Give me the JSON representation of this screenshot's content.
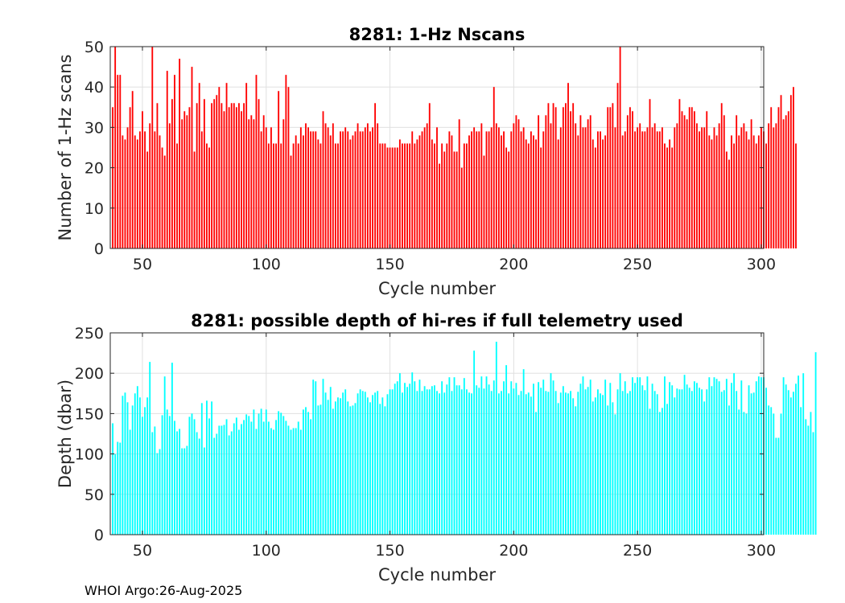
{
  "footer": "WHOI Argo:26-Aug-2025",
  "chart_data": [
    {
      "type": "bar",
      "title": "8281: 1-Hz Nscans",
      "xlabel": "Cycle number",
      "ylabel": "Number of 1-Hz scans",
      "xlim": [
        37,
        301
      ],
      "ylim": [
        0,
        50
      ],
      "xticks": [
        50,
        100,
        150,
        200,
        250,
        300
      ],
      "yticks": [
        0,
        10,
        20,
        30,
        40,
        50
      ],
      "grid": true,
      "color": "#ff0000",
      "x_start": 38,
      "values": [
        35,
        50,
        43,
        43,
        28,
        27,
        30,
        35,
        39,
        28,
        27,
        29,
        34,
        29,
        24,
        31,
        50,
        29,
        36,
        28,
        25,
        23,
        44,
        31,
        37,
        43,
        26,
        47,
        32,
        34,
        33,
        35,
        45,
        24,
        36,
        41,
        29,
        37,
        26,
        25,
        36,
        37,
        38,
        40,
        36,
        34,
        41,
        35,
        36,
        36,
        35,
        36,
        34,
        36,
        41,
        32,
        33,
        32,
        43,
        37,
        29,
        33,
        30,
        26,
        30,
        26,
        26,
        39,
        26,
        32,
        43,
        40,
        23,
        26,
        28,
        26,
        30,
        28,
        31,
        30,
        29,
        29,
        29,
        27,
        26,
        34,
        31,
        30,
        28,
        31,
        26,
        26,
        29,
        29,
        30,
        29,
        27,
        28,
        29,
        31,
        29,
        29,
        30,
        31,
        29,
        30,
        36,
        31,
        26,
        26,
        26,
        25,
        25,
        25,
        25,
        25,
        27,
        26,
        26,
        26,
        26,
        29,
        26,
        27,
        28,
        29,
        30,
        31,
        36,
        27,
        26,
        30,
        21,
        26,
        24,
        26,
        29,
        28,
        24,
        24,
        32,
        20,
        26,
        26,
        28,
        29,
        30,
        29,
        29,
        31,
        23,
        29,
        29,
        30,
        40,
        31,
        30,
        28,
        29,
        25,
        24,
        29,
        31,
        33,
        32,
        29,
        30,
        27,
        26,
        29,
        28,
        27,
        33,
        25,
        29,
        33,
        36,
        31,
        36,
        35,
        27,
        30,
        35,
        36,
        41,
        34,
        36,
        31,
        28,
        33,
        30,
        30,
        32,
        33,
        27,
        25,
        29,
        29,
        27,
        28,
        35,
        35,
        36,
        30,
        41,
        50,
        28,
        29,
        33,
        35,
        34,
        29,
        30,
        31,
        29,
        29,
        30,
        37,
        30,
        31,
        29,
        29,
        30,
        26,
        25,
        27,
        25,
        30,
        31,
        37,
        34,
        33,
        32,
        35,
        35,
        34,
        31,
        29,
        30,
        30,
        34,
        28,
        27,
        30,
        28,
        31,
        36,
        33,
        24,
        22,
        28,
        26,
        33,
        28,
        30,
        31,
        29,
        27,
        32,
        28,
        26,
        28,
        30,
        29,
        26,
        31,
        35,
        30,
        31,
        35,
        38,
        32,
        33,
        34,
        38,
        40,
        26
      ]
    },
    {
      "type": "bar",
      "title": "8281: possible depth of hi-res if full telemetry used",
      "xlabel": "Cycle number",
      "ylabel": "Depth (dbar)",
      "xlim": [
        37,
        301
      ],
      "ylim": [
        0,
        250
      ],
      "xticks": [
        50,
        100,
        150,
        200,
        250,
        300
      ],
      "yticks": [
        0,
        50,
        100,
        150,
        200,
        250
      ],
      "grid": true,
      "color": "#00ffff",
      "x_start": 38,
      "values": [
        138,
        100,
        115,
        114,
        172,
        176,
        164,
        130,
        160,
        175,
        184,
        170,
        146,
        158,
        170,
        214,
        127,
        134,
        101,
        106,
        148,
        196,
        155,
        147,
        213,
        141,
        128,
        131,
        107,
        107,
        110,
        146,
        150,
        143,
        127,
        119,
        163,
        108,
        166,
        144,
        165,
        120,
        125,
        135,
        135,
        136,
        143,
        123,
        128,
        138,
        145,
        130,
        137,
        142,
        149,
        147,
        140,
        155,
        131,
        150,
        156,
        140,
        155,
        140,
        132,
        130,
        142,
        153,
        151,
        147,
        141,
        135,
        130,
        132,
        132,
        140,
        130,
        155,
        158,
        152,
        143,
        192,
        190,
        160,
        161,
        193,
        176,
        167,
        183,
        156,
        165,
        170,
        169,
        176,
        180,
        165,
        159,
        160,
        163,
        175,
        180,
        178,
        177,
        170,
        164,
        173,
        176,
        178,
        162,
        170,
        159,
        174,
        180,
        180,
        187,
        190,
        200,
        176,
        188,
        183,
        187,
        201,
        190,
        178,
        192,
        178,
        184,
        180,
        180,
        184,
        185,
        178,
        175,
        190,
        176,
        186,
        195,
        178,
        195,
        185,
        185,
        180,
        194,
        180,
        176,
        175,
        228,
        185,
        182,
        196,
        181,
        196,
        186,
        178,
        191,
        239,
        175,
        178,
        190,
        210,
        175,
        190,
        181,
        188,
        173,
        178,
        205,
        174,
        176,
        171,
        187,
        152,
        189,
        182,
        192,
        178,
        177,
        200,
        191,
        178,
        163,
        176,
        184,
        176,
        175,
        178,
        169,
        159,
        177,
        187,
        196,
        180,
        183,
        192,
        165,
        170,
        180,
        175,
        173,
        192,
        160,
        188,
        164,
        149,
        180,
        200,
        178,
        190,
        175,
        178,
        195,
        188,
        195,
        195,
        185,
        179,
        196,
        156,
        187,
        178,
        174,
        152,
        157,
        196,
        162,
        189,
        185,
        170,
        181,
        180,
        180,
        198,
        186,
        182,
        178,
        190,
        188,
        182,
        180,
        165,
        180,
        195,
        184,
        195,
        193,
        190,
        177,
        179,
        193,
        160,
        188,
        200,
        178,
        155,
        191,
        152,
        150,
        185,
        175,
        176,
        190,
        196,
        195,
        195,
        182,
        160,
        158,
        150,
        120,
        120,
        150,
        195,
        186,
        179,
        170,
        177,
        187,
        197,
        158,
        200,
        143,
        135,
        152,
        127,
        226
      ]
    }
  ]
}
